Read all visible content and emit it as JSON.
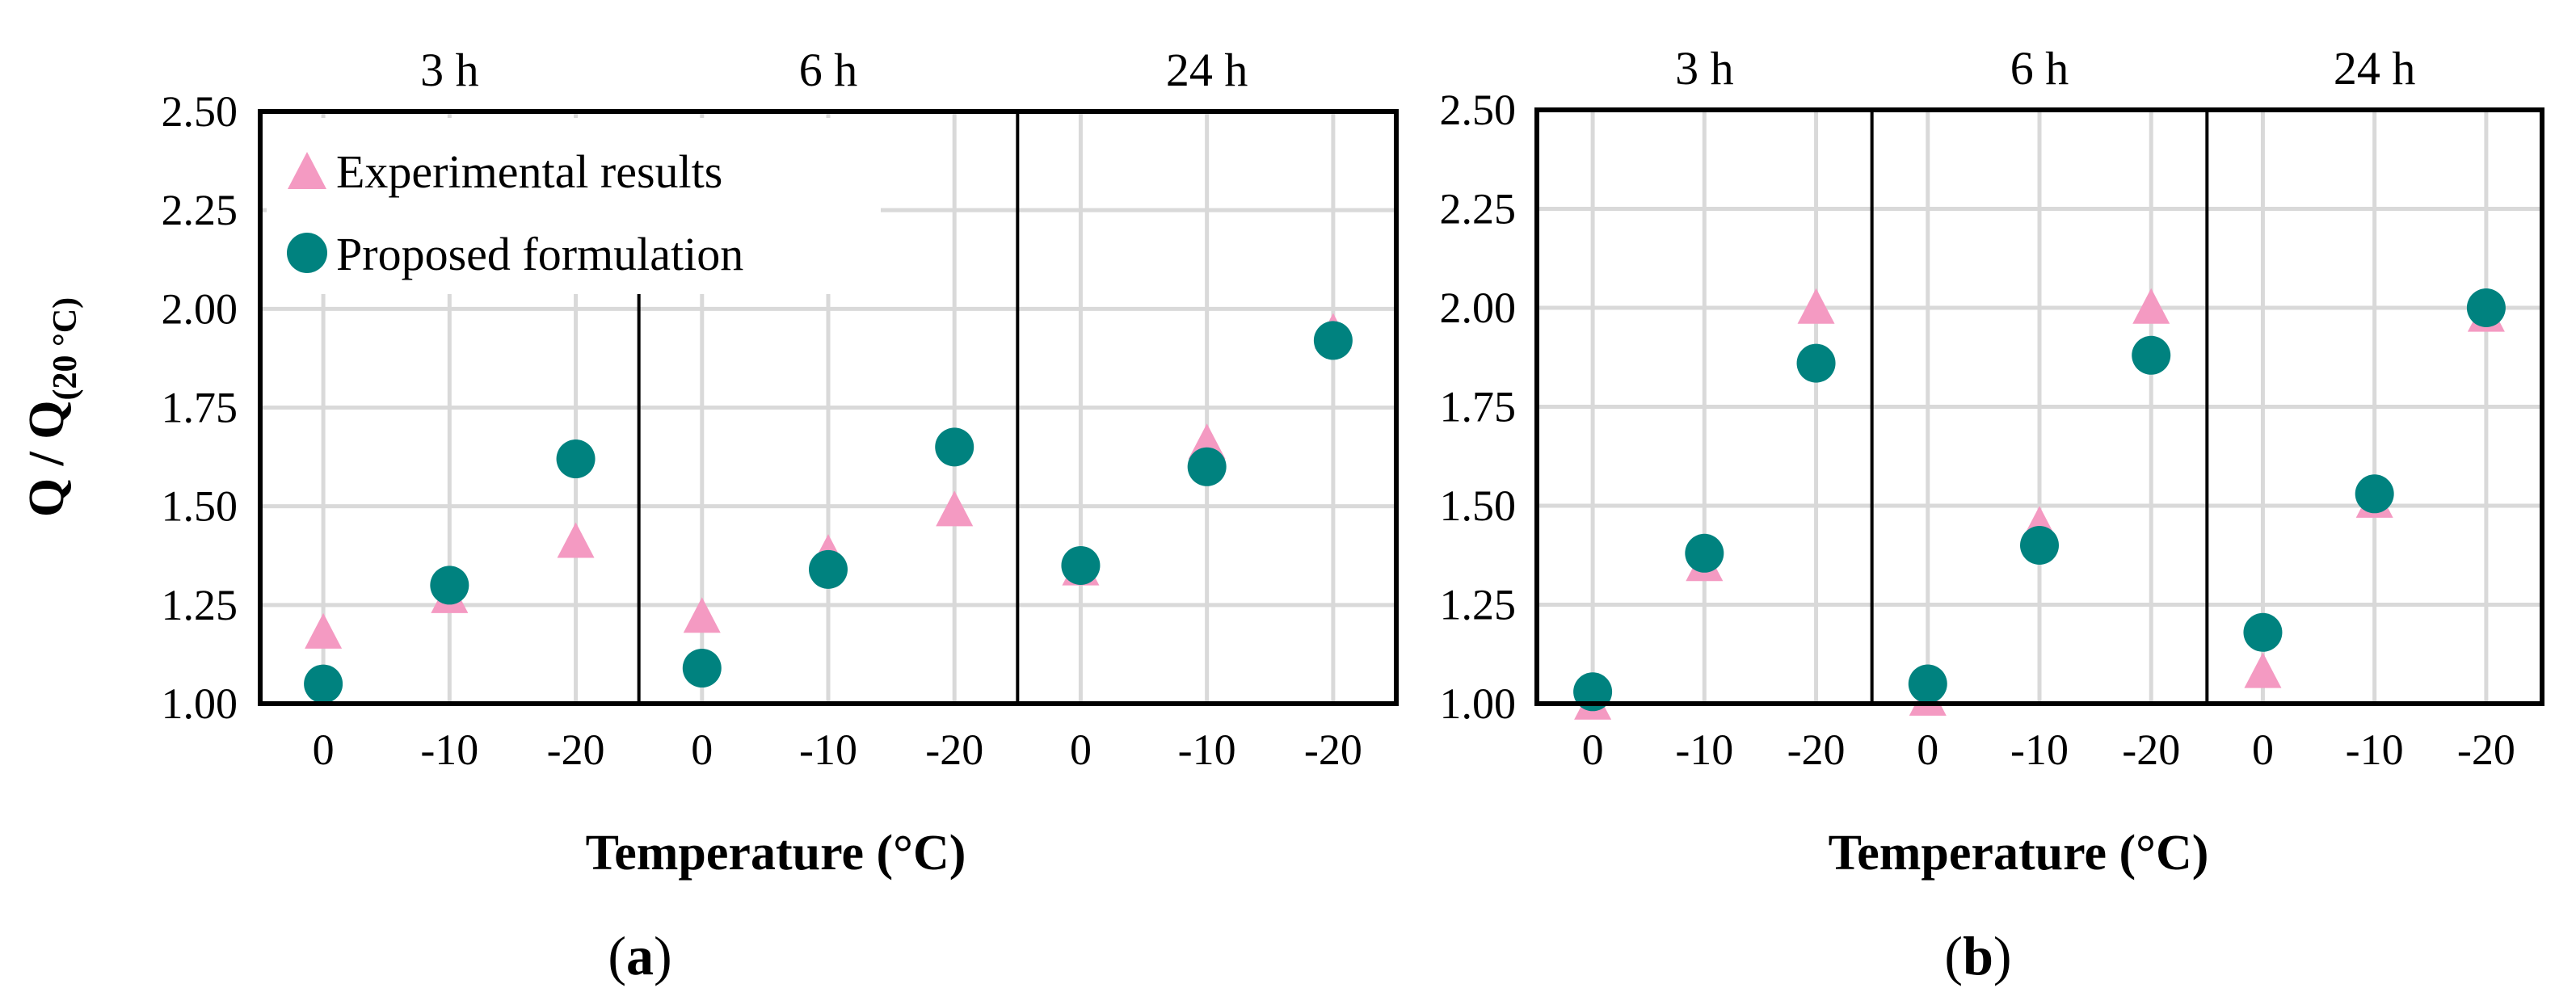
{
  "figure": {
    "panel_labels": [
      {
        "open": "(",
        "letter": "a",
        "close": ")"
      },
      {
        "open": "(",
        "letter": "b",
        "close": ")"
      }
    ]
  },
  "chart_data": [
    {
      "type": "scatter",
      "panel": "a",
      "categories": [
        "0",
        "-10",
        "-20",
        "0",
        "-10",
        "-20",
        "0",
        "-10",
        "-20"
      ],
      "groups": [
        {
          "label": "3 h",
          "start": 0,
          "end": 2
        },
        {
          "label": "6 h",
          "start": 3,
          "end": 5
        },
        {
          "label": "24 h",
          "start": 6,
          "end": 8
        }
      ],
      "series": [
        {
          "name": "Experimental results",
          "marker": "triangle",
          "color": "#f49ac2",
          "values": [
            1.18,
            1.27,
            1.41,
            1.22,
            1.38,
            1.49,
            1.34,
            1.66,
            1.94
          ]
        },
        {
          "name": "Proposed formulation",
          "marker": "circle",
          "color": "#00827f",
          "values": [
            1.05,
            1.3,
            1.62,
            1.09,
            1.34,
            1.65,
            1.35,
            1.6,
            1.92
          ]
        }
      ],
      "xlabel": "Temperature (°C)",
      "ylabel": {
        "main": "Q / Q",
        "sub": "(20 °C)"
      },
      "ylim": [
        1.0,
        2.5
      ],
      "yticks": [
        "1.00",
        "1.25",
        "1.50",
        "1.75",
        "2.00",
        "2.25",
        "2.50"
      ],
      "grid": true,
      "legend": "top-left"
    },
    {
      "type": "scatter",
      "panel": "b",
      "categories": [
        "0",
        "-10",
        "-20",
        "0",
        "-10",
        "-20",
        "0",
        "-10",
        "-20"
      ],
      "groups": [
        {
          "label": "3 h",
          "start": 0,
          "end": 2
        },
        {
          "label": "6 h",
          "start": 3,
          "end": 5
        },
        {
          "label": "24 h",
          "start": 6,
          "end": 8
        }
      ],
      "series": [
        {
          "name": "Experimental results",
          "marker": "triangle",
          "color": "#f49ac2",
          "values": [
            1.0,
            1.35,
            2.0,
            1.01,
            1.45,
            2.0,
            1.08,
            1.51,
            1.98
          ]
        },
        {
          "name": "Proposed formulation",
          "marker": "circle",
          "color": "#00827f",
          "values": [
            1.03,
            1.38,
            1.86,
            1.05,
            1.4,
            1.88,
            1.18,
            1.53,
            2.0
          ]
        }
      ],
      "xlabel": "Temperature (°C)",
      "ylim": [
        1.0,
        2.5
      ],
      "yticks": [
        "1.00",
        "1.25",
        "1.50",
        "1.75",
        "2.00",
        "2.25",
        "2.50"
      ],
      "grid": true,
      "legend": ""
    }
  ]
}
